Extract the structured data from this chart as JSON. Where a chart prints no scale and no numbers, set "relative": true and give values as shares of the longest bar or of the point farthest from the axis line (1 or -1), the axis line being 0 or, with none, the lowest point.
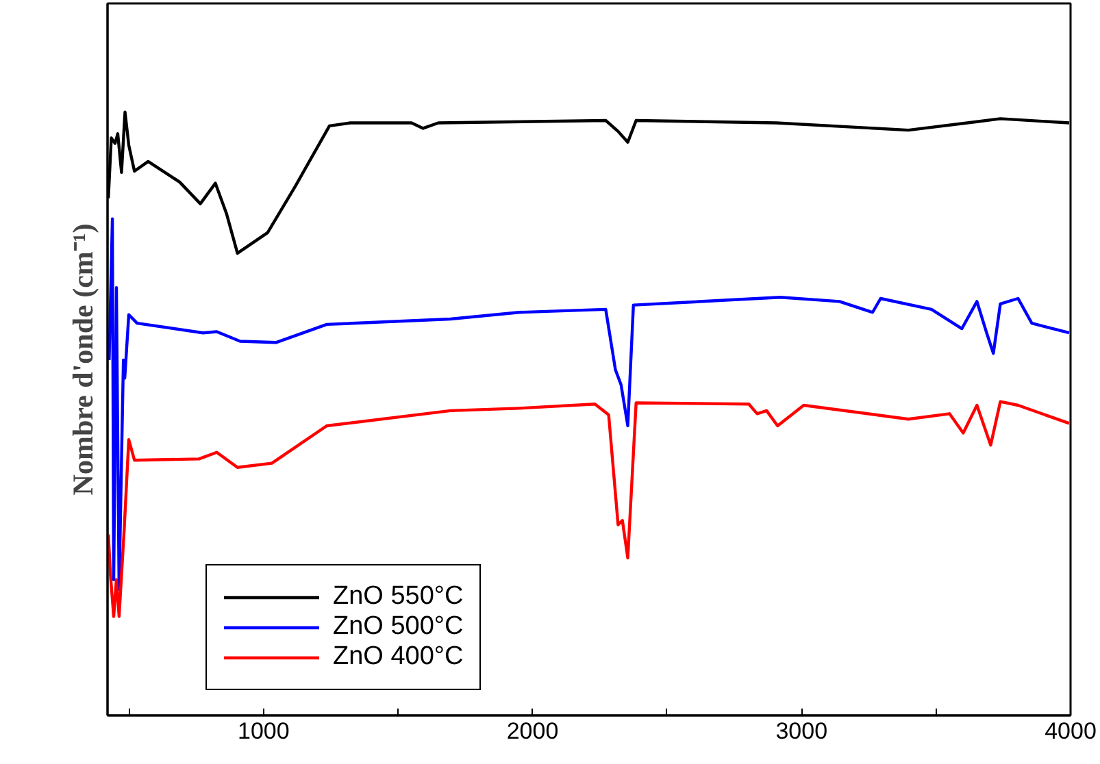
{
  "chart_data": {
    "type": "line",
    "ylabel": "Nombre d'onde (cm⁻¹)",
    "relative": true,
    "tick_labels": "x",
    "legend": "bottom left",
    "line_style": "solid",
    "xlim": [
      420,
      4000
    ],
    "xticks": [
      {
        "value": 500,
        "label": null
      },
      1000,
      {
        "value": 1500,
        "label": null
      },
      2000,
      {
        "value": 2500,
        "label": null
      },
      3000,
      {
        "value": 3500,
        "label": null
      },
      4000
    ],
    "series": [
      {
        "name": "ZnO 550°C",
        "color": "#000000",
        "x": [
          423,
          434,
          448,
          458,
          472,
          485,
          499,
          520,
          571,
          688,
          765,
          821,
          862,
          903,
          1015,
          1118,
          1245,
          1322,
          1550,
          1593,
          1650,
          2272,
          2318,
          2354,
          2385,
          2906,
          3397,
          3652,
          3739,
          3995
        ],
        "values": [
          0.857,
          0.957,
          0.948,
          0.964,
          0.9,
          1.0,
          0.945,
          0.902,
          0.918,
          0.884,
          0.848,
          0.882,
          0.832,
          0.766,
          0.8,
          0.877,
          0.977,
          0.982,
          0.982,
          0.973,
          0.982,
          0.986,
          0.968,
          0.95,
          0.986,
          0.982,
          0.97,
          0.984,
          0.989,
          0.982
        ]
      },
      {
        "name": "ZnO 500°C",
        "color": "#0000ff",
        "x": [
          426,
          438,
          443,
          453,
          463,
          479,
          484,
          499,
          530,
          775,
          826,
          913,
          1046,
          1235,
          1695,
          1950,
          2272,
          2308,
          2329,
          2354,
          2375,
          2921,
          3141,
          3264,
          3294,
          3483,
          3596,
          3652,
          3688,
          3713,
          3739,
          3805,
          3856,
          3995
        ],
        "values": [
          0.589,
          0.823,
          0.225,
          0.709,
          0.209,
          0.589,
          0.559,
          0.664,
          0.65,
          0.634,
          0.636,
          0.62,
          0.618,
          0.648,
          0.657,
          0.668,
          0.673,
          0.573,
          0.548,
          0.48,
          0.68,
          0.693,
          0.686,
          0.668,
          0.691,
          0.673,
          0.641,
          0.686,
          0.634,
          0.6,
          0.682,
          0.691,
          0.65,
          0.634
        ]
      },
      {
        "name": "ZnO 400°C",
        "color": "#ff0000",
        "x": [
          423,
          431,
          443,
          453,
          463,
          482,
          499,
          520,
          760,
          826,
          903,
          1031,
          1235,
          1695,
          1950,
          2232,
          2283,
          2318,
          2334,
          2354,
          2385,
          2804,
          2835,
          2870,
          2911,
          3008,
          3397,
          3550,
          3601,
          3652,
          3703,
          3739,
          3805,
          3995
        ],
        "values": [
          0.3,
          0.232,
          0.164,
          0.225,
          0.164,
          0.309,
          0.457,
          0.423,
          0.425,
          0.436,
          0.411,
          0.418,
          0.48,
          0.505,
          0.509,
          0.516,
          0.498,
          0.316,
          0.323,
          0.261,
          0.518,
          0.516,
          0.5,
          0.505,
          0.48,
          0.514,
          0.491,
          0.5,
          0.468,
          0.514,
          0.448,
          0.52,
          0.514,
          0.484
        ]
      }
    ]
  }
}
